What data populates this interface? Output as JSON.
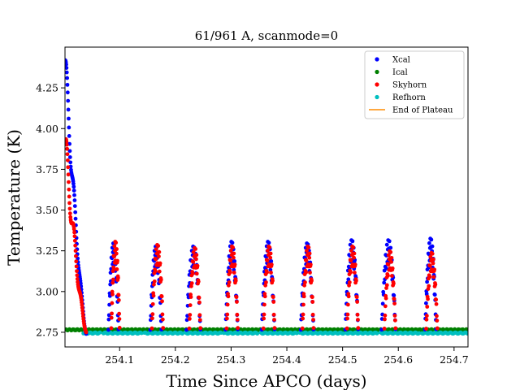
{
  "chart_data": {
    "type": "scatter",
    "title": "61/961 A, scanmode=0",
    "xlabel": "Time Since APCO (days)",
    "ylabel": "Temperature (K)",
    "xlim": [
      254.002,
      254.725
    ],
    "ylim": [
      2.66,
      4.5
    ],
    "xticks": [
      "254.1",
      "254.2",
      "254.3",
      "254.4",
      "254.5",
      "254.6",
      "254.7"
    ],
    "xtick_values": [
      254.1,
      254.2,
      254.3,
      254.4,
      254.5,
      254.6,
      254.7
    ],
    "yticks": [
      "2.75",
      "3.00",
      "3.25",
      "3.50",
      "3.75",
      "4.00",
      "4.25"
    ],
    "ytick_values": [
      2.75,
      3.0,
      3.25,
      3.5,
      3.75,
      4.0,
      4.25
    ],
    "grid": false,
    "legend_position": "upper-right",
    "colors": {
      "Xcal": "#0000ff",
      "Ical": "#008000",
      "Skyhorn": "#ff0000",
      "Refhorn": "#00bfbf",
      "End of Plateau": "#ff8c00"
    },
    "series": [
      {
        "name": "Xcal",
        "marker": "dot",
        "description_peaks": [
          {
            "x": [
              254.002,
              254.04
            ],
            "peak": 4.42,
            "base": 2.74
          },
          {
            "x": [
              254.08,
              254.098
            ],
            "peak": 3.31,
            "base": 2.74
          },
          {
            "x": [
              254.155,
              254.175
            ],
            "peak": 3.29,
            "base": 2.74
          },
          {
            "x": [
              254.22,
              254.245
            ],
            "peak": 3.29,
            "base": 2.74
          },
          {
            "x": [
              254.29,
              254.312
            ],
            "peak": 3.32,
            "base": 2.74
          },
          {
            "x": [
              254.355,
              254.378
            ],
            "peak": 3.32,
            "base": 2.74
          },
          {
            "x": [
              254.425,
              254.448
            ],
            "peak": 3.31,
            "base": 2.74
          },
          {
            "x": [
              254.505,
              254.528
            ],
            "peak": 3.33,
            "base": 2.74
          },
          {
            "x": [
              254.57,
              254.595
            ],
            "peak": 3.33,
            "base": 2.74
          },
          {
            "x": [
              254.648,
              254.668
            ],
            "peak": 3.34,
            "base": 2.74
          }
        ]
      },
      {
        "name": "Ical",
        "marker": "dot",
        "value": 2.765,
        "x_range": [
          254.002,
          254.725
        ]
      },
      {
        "name": "Skyhorn",
        "marker": "dot",
        "description_peaks": [
          {
            "x": [
              254.002,
              254.04
            ],
            "peak": 3.92,
            "base": 2.75
          },
          {
            "x": [
              254.085,
              254.1
            ],
            "peak": 3.32,
            "base": 2.75
          },
          {
            "x": [
              254.158,
              254.178
            ],
            "peak": 3.3,
            "base": 2.75
          },
          {
            "x": [
              254.225,
              254.245
            ],
            "peak": 3.28,
            "base": 2.75
          },
          {
            "x": [
              254.292,
              254.312
            ],
            "peak": 3.29,
            "base": 2.75
          },
          {
            "x": [
              254.358,
              254.378
            ],
            "peak": 3.29,
            "base": 2.75
          },
          {
            "x": [
              254.428,
              254.448
            ],
            "peak": 3.29,
            "base": 2.75
          },
          {
            "x": [
              254.508,
              254.528
            ],
            "peak": 3.29,
            "base": 2.75
          },
          {
            "x": [
              254.575,
              254.595
            ],
            "peak": 3.26,
            "base": 2.75
          },
          {
            "x": [
              254.65,
              254.67
            ],
            "peak": 3.25,
            "base": 2.75
          }
        ]
      },
      {
        "name": "Refhorn",
        "marker": "dot",
        "value": 2.745,
        "x_range": [
          254.035,
          254.725
        ]
      },
      {
        "name": "End of Plateau",
        "marker": "line"
      }
    ]
  }
}
